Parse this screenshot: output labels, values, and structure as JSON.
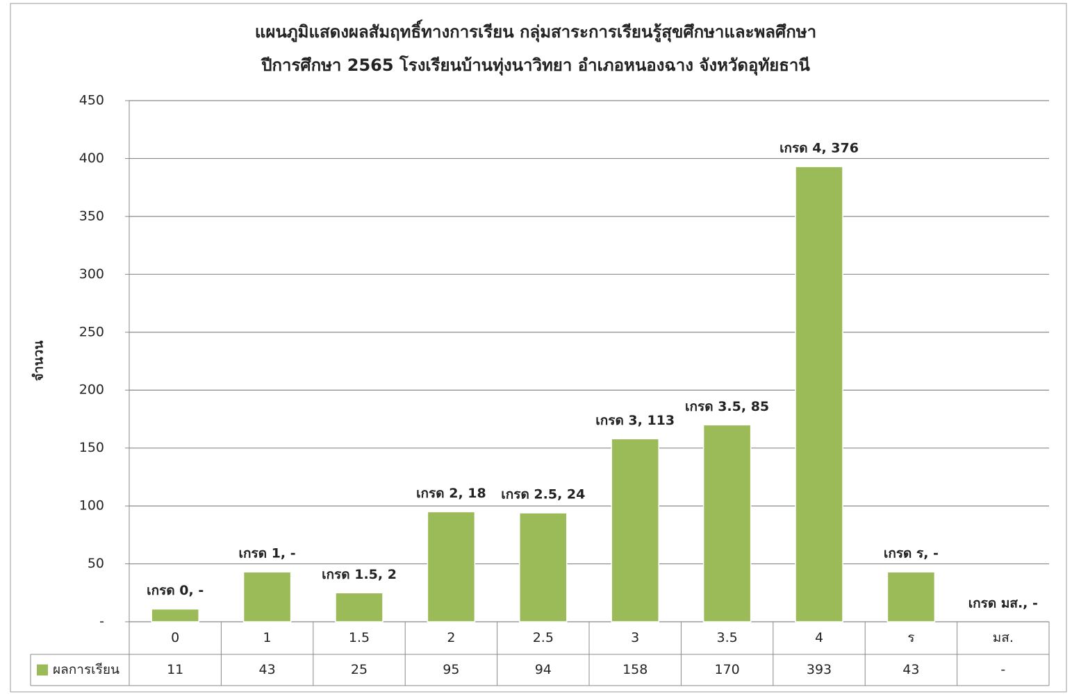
{
  "chart_data": {
    "type": "bar",
    "title": [
      "แผนภูมิแสดงผลสัมฤทธิ์ทางการเรียน กลุ่มสาระการเรียนรู้สุขศึกษาและพลศึกษา",
      "ปีการศึกษา 2565 โรงเรียนบ้านทุ่งนาวิทยา อำเภอหนองฉาง จังหวัดอุทัยธานี"
    ],
    "y_label": "จำนวน",
    "categories": [
      "0",
      "1",
      "1.5",
      "2",
      "2.5",
      "3",
      "3.5",
      "4",
      "ร",
      "มส."
    ],
    "series": [
      {
        "name": "ผลการเรียน",
        "color": "#9bbb59",
        "values": [
          11,
          43,
          25,
          95,
          94,
          158,
          170,
          393,
          43,
          null
        ],
        "value_labels": [
          "11",
          "43",
          "25",
          "95",
          "94",
          "158",
          "170",
          "393",
          "43",
          "-"
        ]
      }
    ],
    "annotations": [
      "เกรด 0,  -",
      "เกรด 1,  -",
      "เกรด 1.5,  2",
      "เกรด 2,  18",
      "เกรด 2.5,  24",
      "เกรด 3,  113",
      "เกรด 3.5,  85",
      "เกรด 4,  376",
      "เกรด ร,  -",
      "เกรด มส.,  -"
    ],
    "ylim": [
      0,
      450
    ],
    "yticks": [
      {
        "value": 0,
        "label": "-"
      },
      50,
      100,
      150,
      200,
      250,
      300,
      350,
      400,
      450
    ],
    "grid": true
  }
}
